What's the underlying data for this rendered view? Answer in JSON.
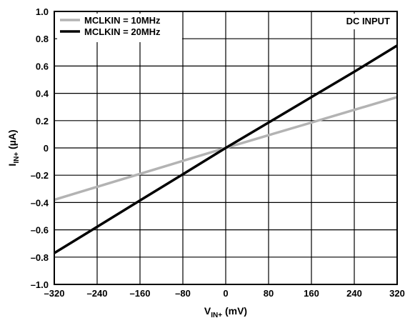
{
  "chart_data": {
    "type": "line",
    "annotation": "DC INPUT",
    "xlabel": {
      "main": "V",
      "sub": "IN+",
      "unit": " (mV)"
    },
    "ylabel": {
      "main": "I",
      "sub": "IN+",
      "unit": " (µA)"
    },
    "xlim": [
      -320,
      320
    ],
    "ylim": [
      -1.0,
      1.0
    ],
    "x_ticks": [
      -320,
      -240,
      -160,
      -80,
      0,
      80,
      160,
      240,
      320
    ],
    "x_tick_labels": [
      "–320",
      "–240",
      "–160",
      "–80",
      "0",
      "80",
      "160",
      "240",
      "320"
    ],
    "y_ticks": [
      -1.0,
      -0.8,
      -0.6,
      -0.4,
      -0.2,
      0,
      0.2,
      0.4,
      0.6,
      0.8,
      1.0
    ],
    "y_tick_labels": [
      "–1.0",
      "–0.8",
      "–0.6",
      "–0.4",
      "–0.2",
      "0",
      "0.2",
      "0.4",
      "0.6",
      "0.8",
      "1.0"
    ],
    "grid": true,
    "legend_position": "top-left",
    "series": [
      {
        "name": "MCLKIN = 10MHz",
        "color": "#b3b3b3",
        "x": [
          -320,
          -240,
          -160,
          -80,
          0,
          80,
          160,
          240,
          320
        ],
        "y": [
          -0.38,
          -0.285,
          -0.19,
          -0.095,
          0,
          0.093,
          0.186,
          0.279,
          0.372
        ]
      },
      {
        "name": "MCLKIN = 20MHz",
        "color": "#000000",
        "x": [
          -320,
          -240,
          -160,
          -80,
          0,
          80,
          160,
          240,
          320
        ],
        "y": [
          -0.77,
          -0.578,
          -0.385,
          -0.193,
          0,
          0.186,
          0.372,
          0.558,
          0.75
        ]
      }
    ]
  }
}
